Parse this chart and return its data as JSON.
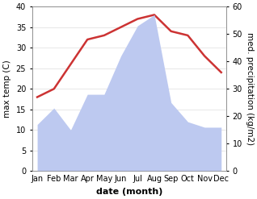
{
  "months": [
    "Jan",
    "Feb",
    "Mar",
    "Apr",
    "May",
    "Jun",
    "Jul",
    "Aug",
    "Sep",
    "Oct",
    "Nov",
    "Dec"
  ],
  "temperature": [
    18,
    20,
    26,
    32,
    33,
    35,
    37,
    38,
    34,
    33,
    28,
    24
  ],
  "precipitation_kg": [
    17,
    23,
    15,
    28,
    28,
    42,
    53,
    57,
    25,
    18,
    16,
    16
  ],
  "temp_color": "#cc3333",
  "precip_fill_color": "#bdc9f0",
  "temp_ylim": [
    0,
    40
  ],
  "precip_ylim": [
    0,
    60
  ],
  "xlabel": "date (month)",
  "ylabel_left": "max temp (C)",
  "ylabel_right": "med. precipitation (kg/m2)",
  "label_fontsize": 7.5,
  "tick_fontsize": 7
}
